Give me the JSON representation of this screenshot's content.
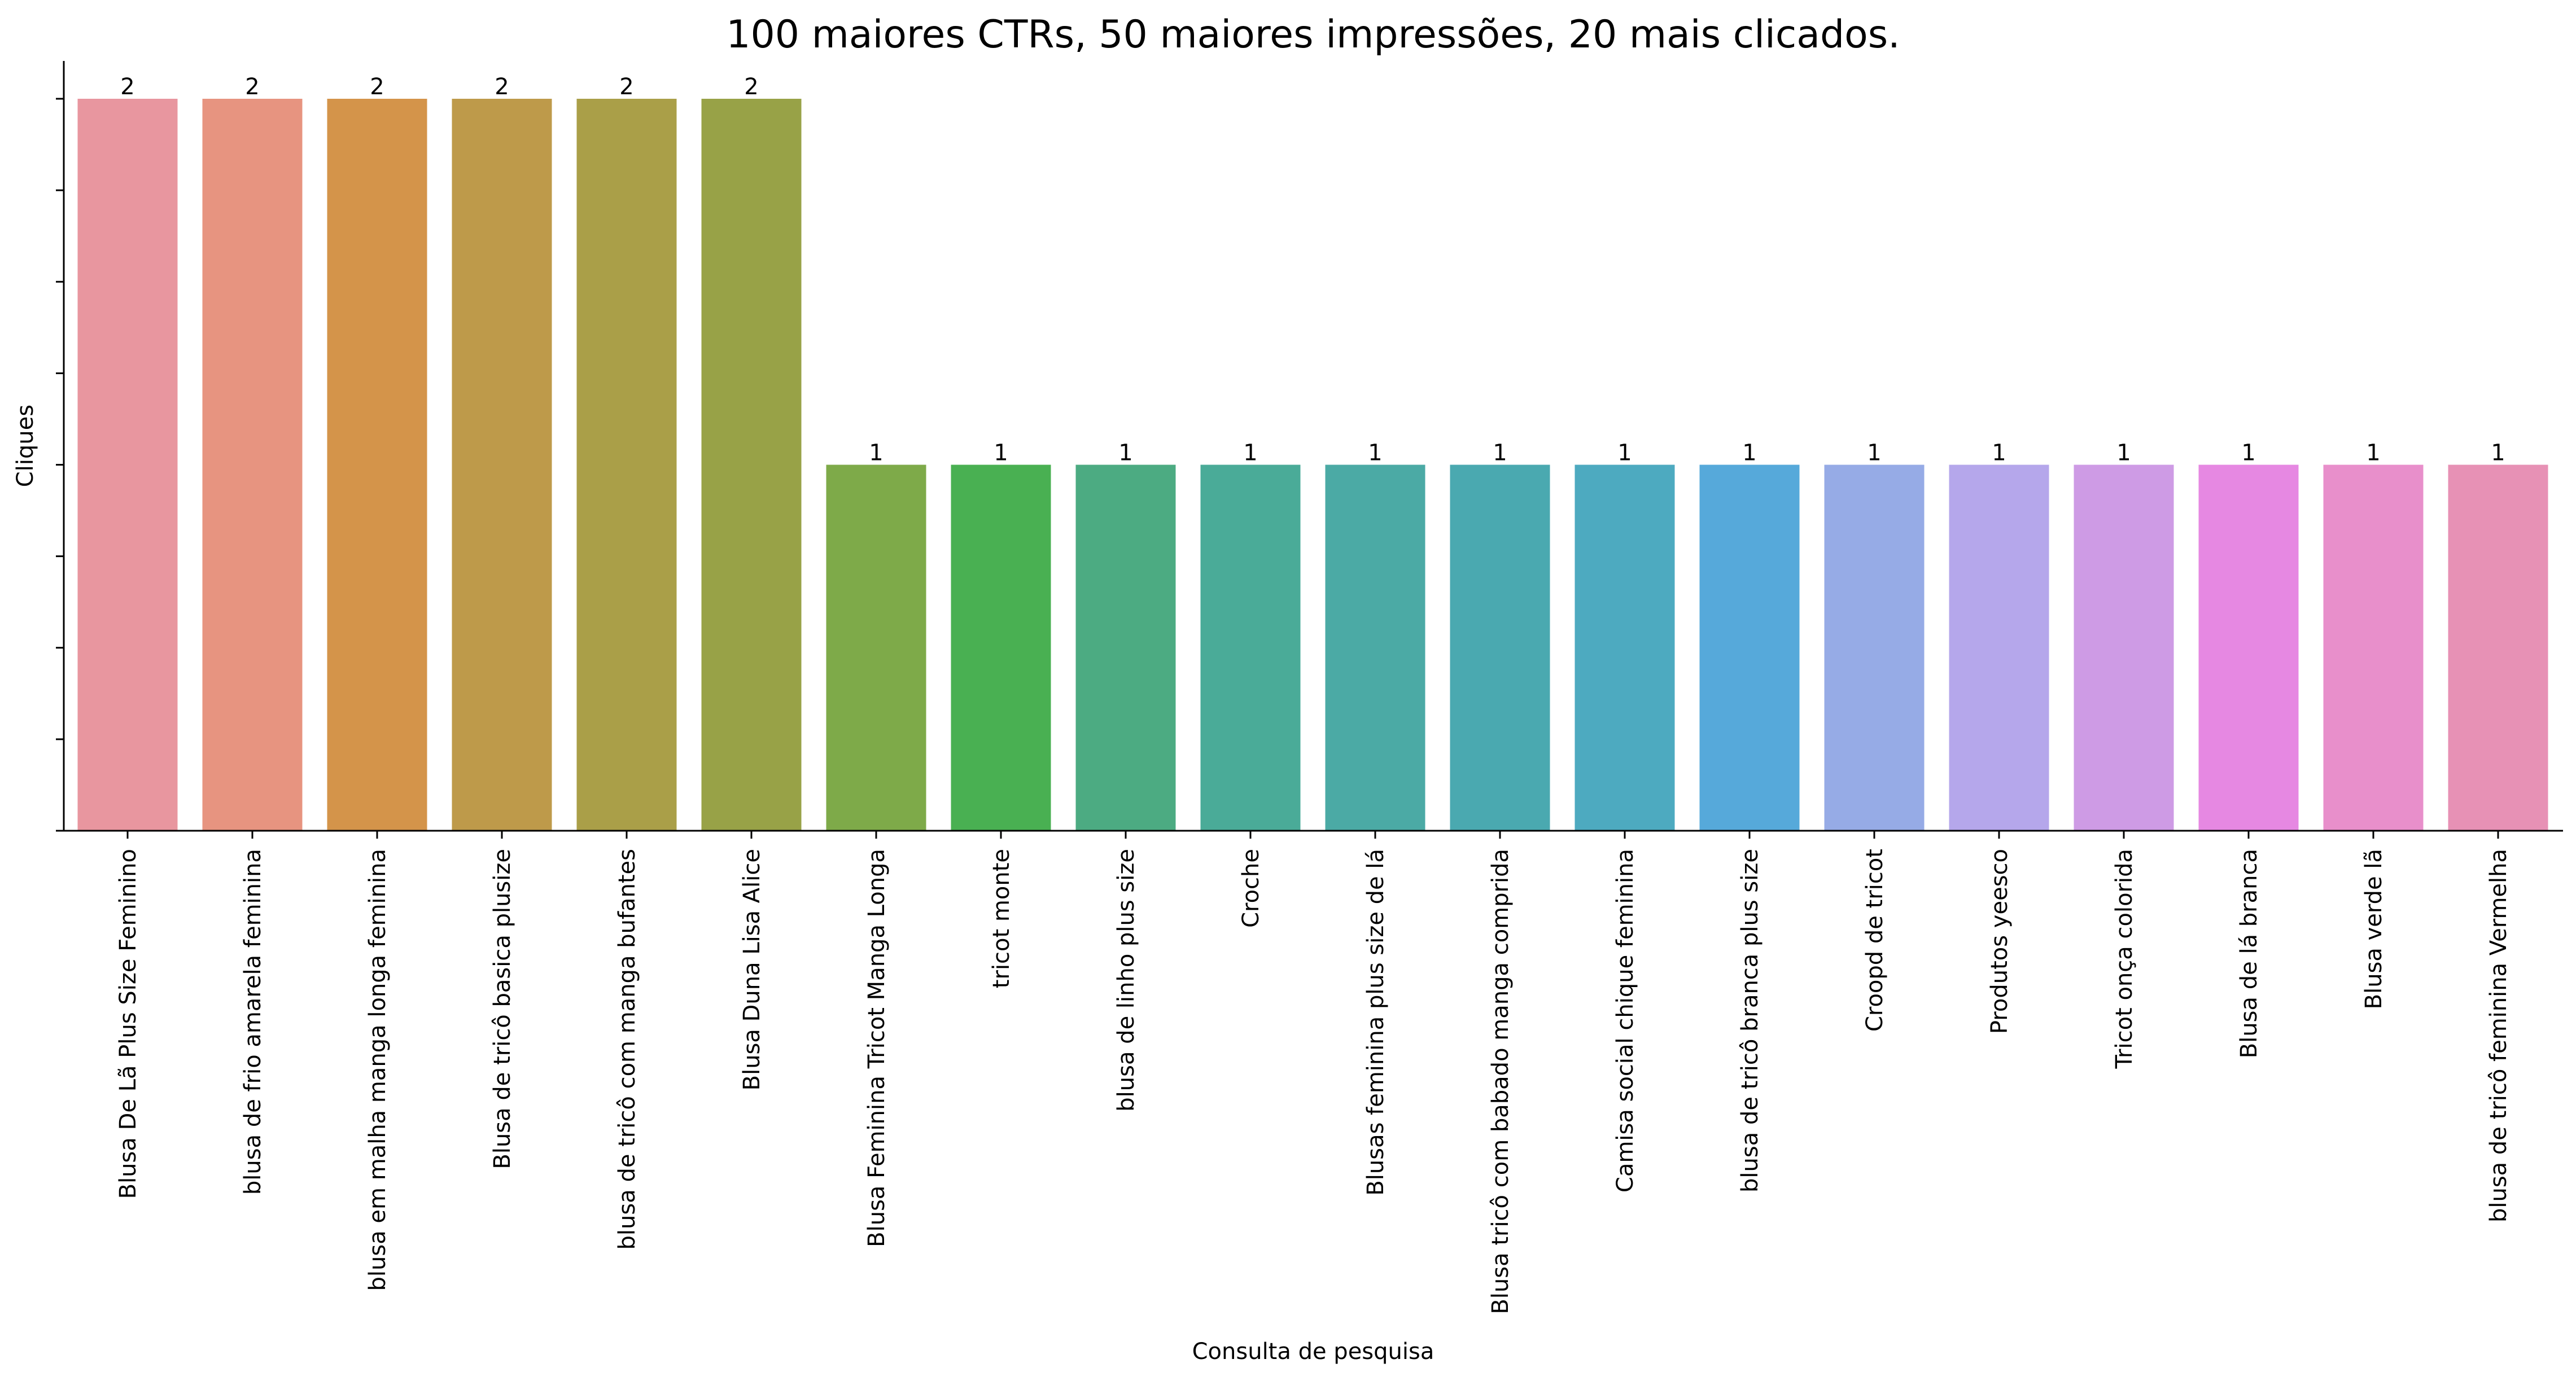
{
  "chart_data": {
    "type": "bar",
    "title": "100 maiores CTRs, 50 maiores impressões, 20 mais clicados.",
    "xlabel": "Consulta de pesquisa",
    "ylabel": "Cliques",
    "ylim": [
      0,
      2.1
    ],
    "grid": false,
    "y_tick_labels_visible": false,
    "categories": [
      "Blusa De Lã Plus Size Feminino",
      "blusa de frio amarela feminina",
      "blusa em malha manga longa feminina",
      "Blusa de tricô basica plusize",
      "blusa de tricô com manga bufantes",
      "Blusa Duna Lisa Alice",
      "Blusa Feminina Tricot Manga Longa",
      "tricot monte",
      "blusa de linho plus size",
      "Croche",
      "Blusas feminina plus size de lá",
      "Blusa tricô com babado manga comprida",
      "Camisa social chique feminina",
      "blusa de tricô branca plus size",
      "Croopd de tricot",
      "Produtos yeesco",
      "Tricot onça colorida",
      "Blusa de lá branca",
      "Blusa verde lã",
      "blusa de tricô feminina Vermelha"
    ],
    "values": [
      2,
      2,
      2,
      2,
      2,
      2,
      1,
      1,
      1,
      1,
      1,
      1,
      1,
      1,
      1,
      1,
      1,
      1,
      1,
      1
    ],
    "data_labels": [
      "2",
      "2",
      "2",
      "2",
      "2",
      "2",
      "1",
      "1",
      "1",
      "1",
      "1",
      "1",
      "1",
      "1",
      "1",
      "1",
      "1",
      "1",
      "1",
      "1"
    ],
    "colors": [
      "#e8969f",
      "#e79480",
      "#d4944a",
      "#be9a4a",
      "#aa9f48",
      "#98a247",
      "#7eaa49",
      "#49b052",
      "#4cab82",
      "#4aab98",
      "#4baaa5",
      "#4aa9b0",
      "#4daac0",
      "#56a9da",
      "#96abe6",
      "#b5a7eb",
      "#ce9be5",
      "#e688e2",
      "#e88fcb",
      "#e791b5"
    ]
  }
}
